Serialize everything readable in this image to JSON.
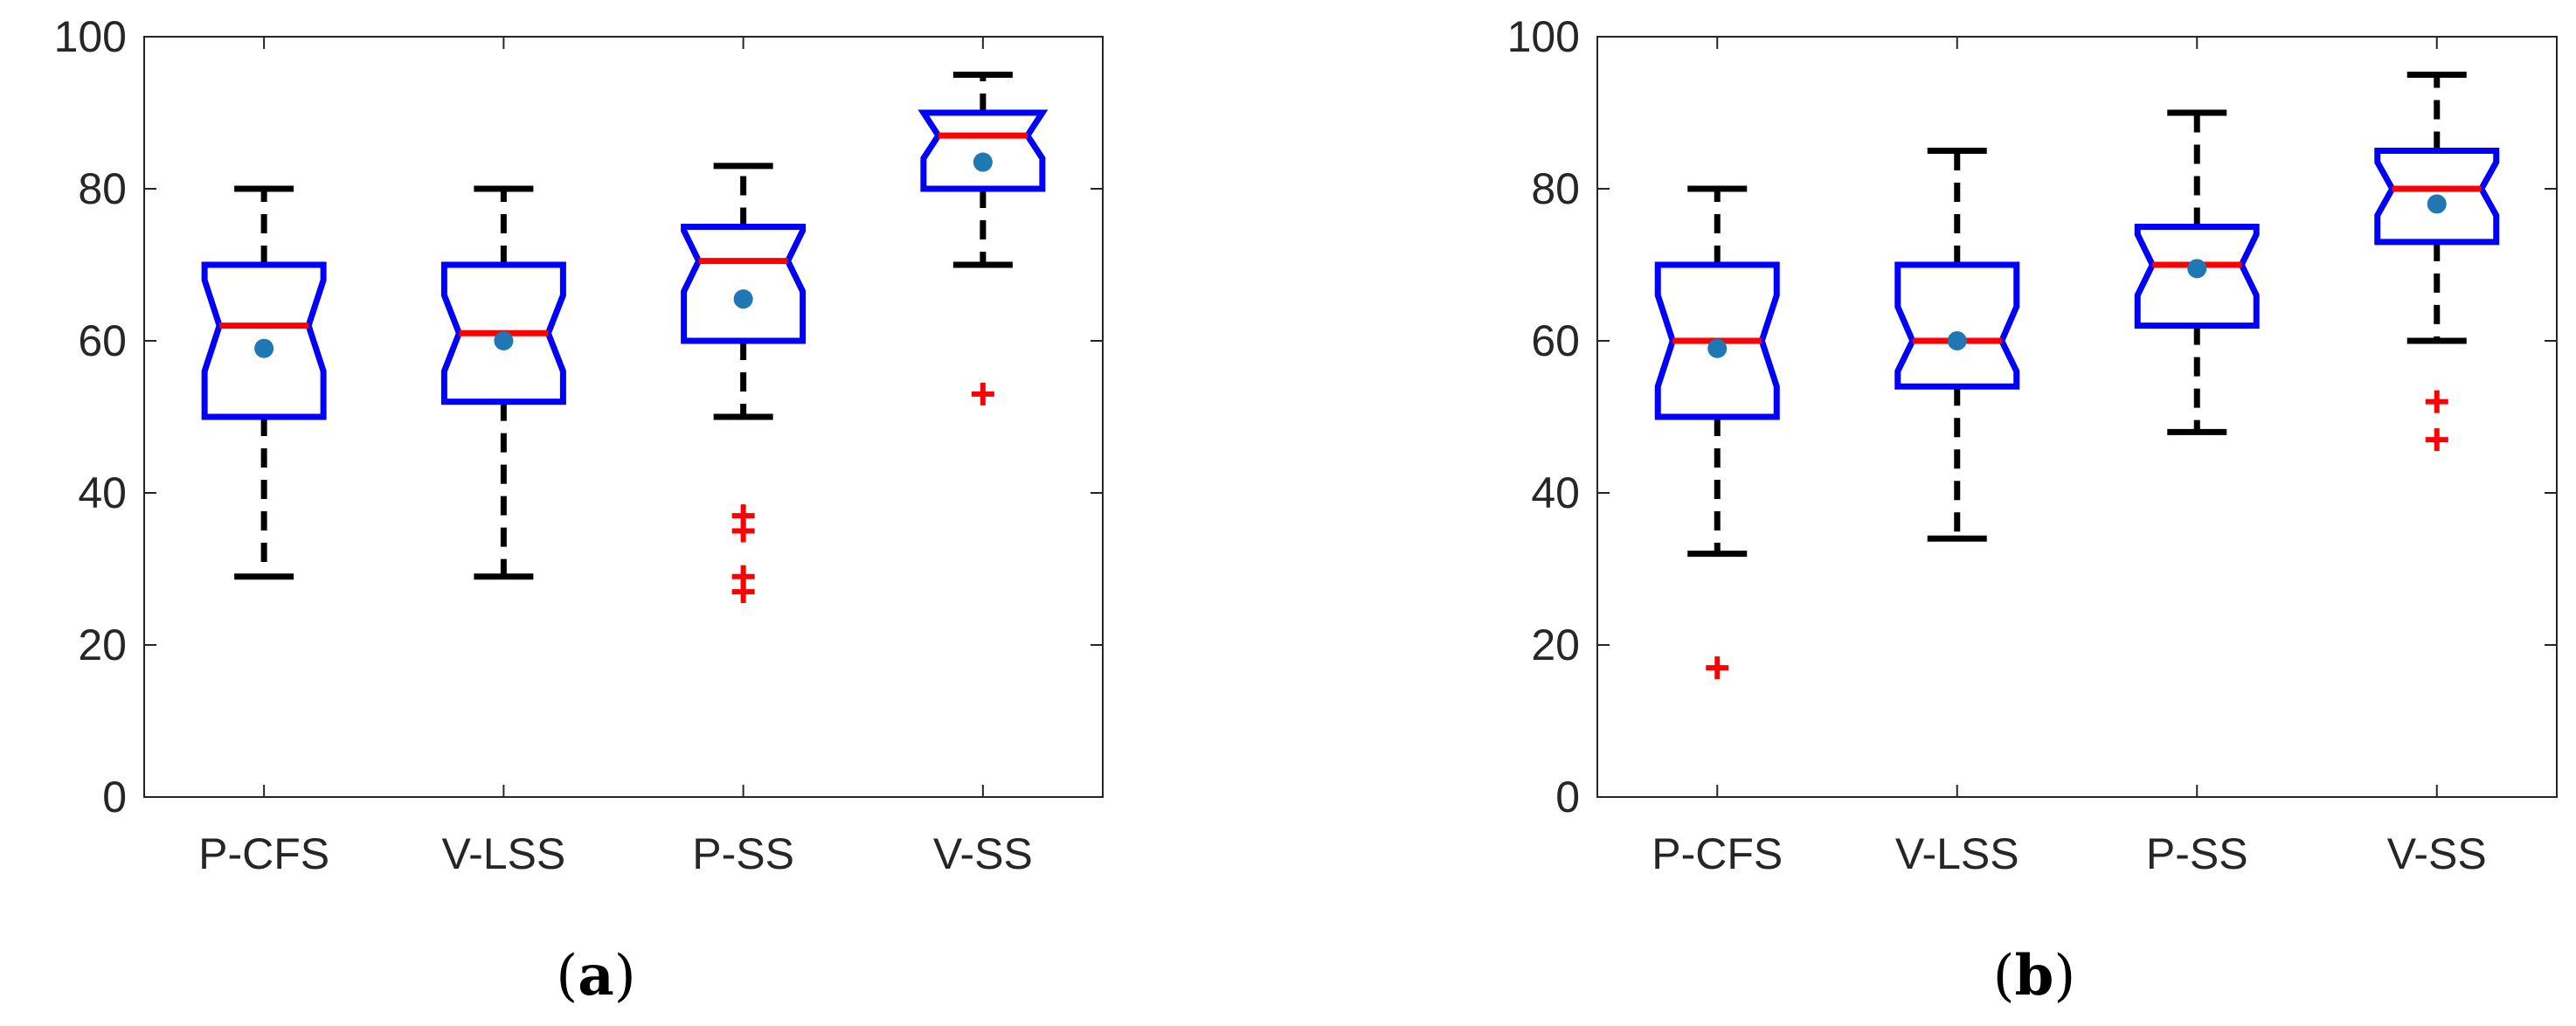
{
  "chart_data": [
    {
      "type": "boxplot",
      "panel_label": "a",
      "categories": [
        "P-CFS",
        "V-LSS",
        "P-SS",
        "V-SS"
      ],
      "ylim": [
        0,
        100
      ],
      "yticks": [
        "0",
        "20",
        "40",
        "60",
        "80",
        "100"
      ],
      "notched": true,
      "grid": false,
      "boxes": [
        {
          "lower_whisker": 29,
          "q1": 50,
          "median": 62,
          "q3": 70,
          "upper_whisker": 80,
          "notch_low": 56,
          "notch_high": 68,
          "mean": 59,
          "outliers": []
        },
        {
          "lower_whisker": 29,
          "q1": 52,
          "median": 61,
          "q3": 70,
          "upper_whisker": 80,
          "notch_low": 56,
          "notch_high": 66,
          "mean": 60,
          "outliers": []
        },
        {
          "lower_whisker": 50,
          "q1": 60,
          "median": 70.5,
          "q3": 75,
          "upper_whisker": 83,
          "notch_low": 66.5,
          "notch_high": 74.5,
          "mean": 65.5,
          "outliers": [
            27,
            29,
            35,
            37
          ]
        },
        {
          "lower_whisker": 70,
          "q1": 80,
          "median": 87,
          "q3": 90,
          "upper_whisker": 95,
          "notch_low": 84,
          "notch_high": 90,
          "mean": 83.5,
          "outliers": [
            53
          ]
        }
      ]
    },
    {
      "type": "boxplot",
      "panel_label": "b",
      "categories": [
        "P-CFS",
        "V-LSS",
        "P-SS",
        "V-SS"
      ],
      "ylim": [
        0,
        100
      ],
      "yticks": [
        "0",
        "20",
        "40",
        "60",
        "80",
        "100"
      ],
      "notched": true,
      "grid": false,
      "boxes": [
        {
          "lower_whisker": 32,
          "q1": 50,
          "median": 60,
          "q3": 70,
          "upper_whisker": 80,
          "notch_low": 54,
          "notch_high": 66,
          "mean": 59,
          "outliers": [
            17
          ]
        },
        {
          "lower_whisker": 34,
          "q1": 54,
          "median": 60,
          "q3": 70,
          "upper_whisker": 85,
          "notch_low": 56,
          "notch_high": 64.5,
          "mean": 60,
          "outliers": []
        },
        {
          "lower_whisker": 48,
          "q1": 62,
          "median": 70,
          "q3": 75,
          "upper_whisker": 90,
          "notch_low": 66,
          "notch_high": 74,
          "mean": 69.5,
          "outliers": []
        },
        {
          "lower_whisker": 60,
          "q1": 73,
          "median": 80,
          "q3": 85,
          "upper_whisker": 95,
          "notch_low": 76.5,
          "notch_high": 83.5,
          "mean": 78,
          "outliers": [
            47,
            52
          ]
        }
      ]
    }
  ],
  "colors": {
    "box": "#0000ff",
    "median": "#ff0000",
    "whisker": "#000000",
    "mean_marker": "#1f77b4",
    "outlier": "#ff0000",
    "axes": "#262626"
  }
}
